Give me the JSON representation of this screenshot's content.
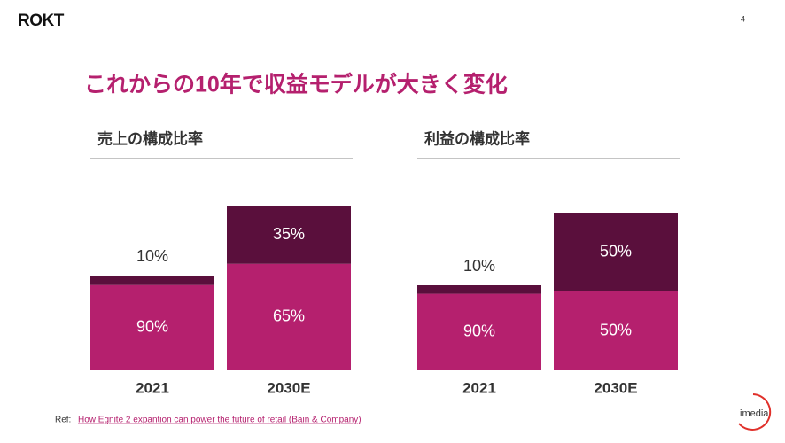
{
  "header": {
    "logo": "ROKT",
    "page": "4",
    "title": "これからの10年で収益モデルが大きく変化"
  },
  "chart_data": [
    {
      "type": "stacked-bar",
      "title": "売上の構成比率",
      "categories": [
        "2021",
        "2030E"
      ],
      "series": [
        {
          "color": "#b5206e",
          "values": [
            90,
            65
          ],
          "value_labels": [
            "90%",
            "65%"
          ]
        },
        {
          "color": "#5a0f3c",
          "values": [
            10,
            35
          ],
          "value_labels": [
            "10%",
            "35%"
          ]
        }
      ]
    },
    {
      "type": "stacked-bar",
      "title": "利益の構成比率",
      "categories": [
        "2021",
        "2030E"
      ],
      "series": [
        {
          "color": "#b5206e",
          "values": [
            90,
            50
          ],
          "value_labels": [
            "90%",
            "50%"
          ]
        },
        {
          "color": "#5a0f3c",
          "values": [
            10,
            50
          ],
          "value_labels": [
            "10%",
            "50%"
          ]
        }
      ]
    }
  ],
  "footer": {
    "ref_label": "Ref:",
    "ref_link": "How Egnite 2 expantion can power the future of retail (Bain & Company)",
    "brand": "imedia"
  }
}
